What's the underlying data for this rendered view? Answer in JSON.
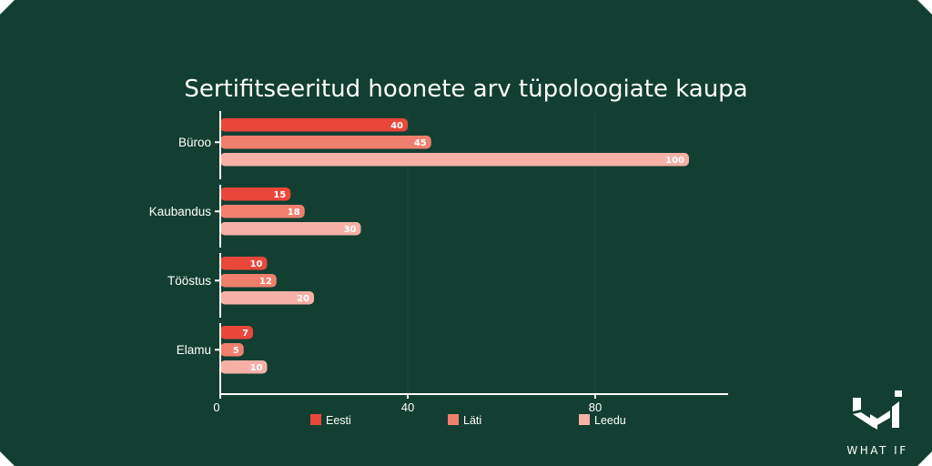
{
  "chart_data": {
    "type": "bar",
    "orientation": "horizontal",
    "title": "Sertifitseeritud hoonete arv tüpoloogiate kaupa",
    "categories": [
      "Büroo",
      "Kaubandus",
      "Tööstus",
      "Elamu"
    ],
    "series": [
      {
        "name": "Eesti",
        "color": "#e8473a",
        "values": [
          40,
          15,
          10,
          7
        ]
      },
      {
        "name": "Läti",
        "color": "#f0806d",
        "values": [
          45,
          18,
          12,
          5
        ]
      },
      {
        "name": "Leedu",
        "color": "#f6b0a6",
        "values": [
          100,
          30,
          20,
          10
        ]
      }
    ],
    "xticks": [
      0,
      40,
      80
    ],
    "xlim": [
      0,
      108
    ],
    "grid": true,
    "legend_position": "bottom"
  },
  "logo": {
    "text": "WHAT IF"
  },
  "colors": {
    "background": "#123f31",
    "axis": "#ffffff",
    "grid": "#1d4a3c"
  }
}
